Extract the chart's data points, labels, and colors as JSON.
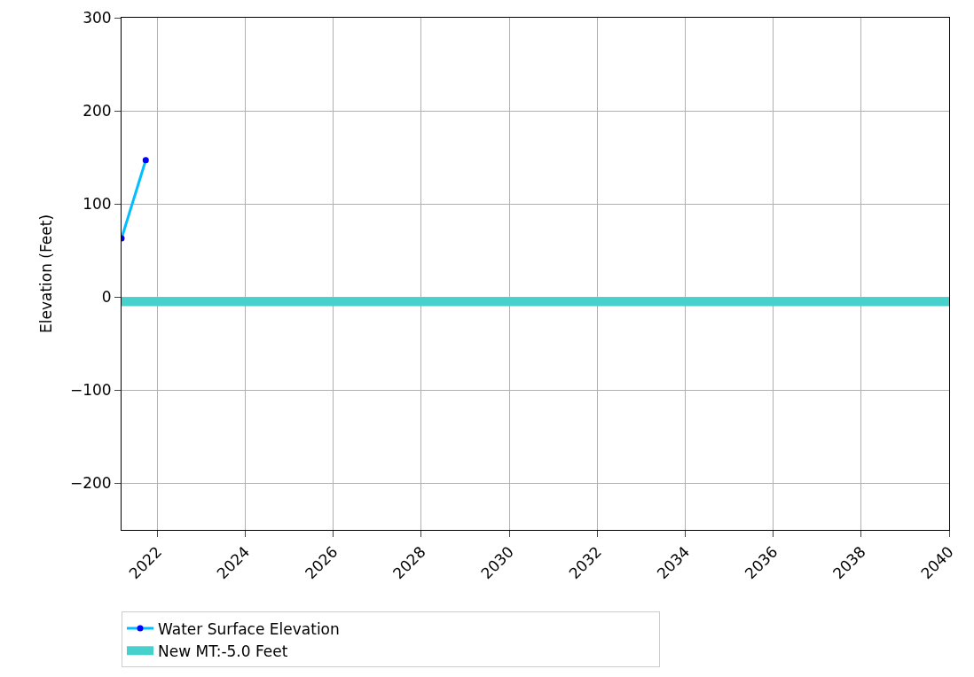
{
  "chart_data": {
    "type": "line",
    "ylabel": "Elevation (Feet)",
    "x": [
      "2021-03-10",
      "2021-09-27"
    ],
    "series": [
      {
        "name": "Water Surface Elevation",
        "color": "#00bfff",
        "values": [
          63,
          147
        ]
      }
    ],
    "marker": "circle",
    "xlim": [
      "2021-03-10",
      "2040-01-01"
    ],
    "xticks": [
      "2022",
      "2024",
      "2026",
      "2028",
      "2030",
      "2032",
      "2034",
      "2036",
      "2038",
      "2040"
    ],
    "ylim": [
      -250,
      300
    ],
    "yticks": [
      -200,
      -100,
      0,
      100,
      200,
      300
    ],
    "ref_lines": [
      {
        "axis": "y",
        "value": -5.0,
        "label": "New MT:-5.0 Feet",
        "color": "#48d1cc"
      }
    ],
    "grid": true,
    "legend": "bottom"
  }
}
